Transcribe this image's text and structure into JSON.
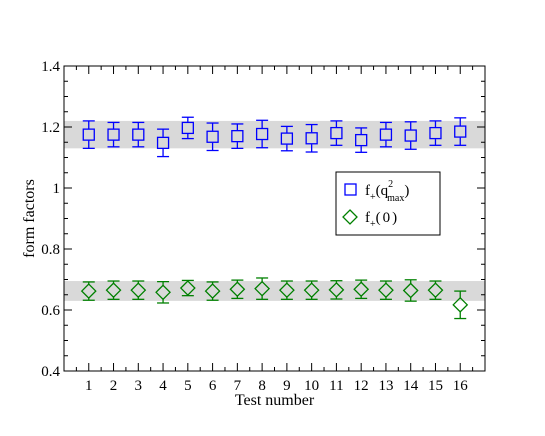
{
  "chart_data": {
    "type": "scatter",
    "xlabel": "Test number",
    "ylabel": "form factors",
    "xlim": [
      0,
      17
    ],
    "ylim": [
      0.4,
      1.4
    ],
    "x_ticks": [
      "1",
      "2",
      "3",
      "4",
      "5",
      "6",
      "7",
      "8",
      "9",
      "10",
      "11",
      "12",
      "13",
      "14",
      "15",
      "16"
    ],
    "y_ticks": [
      "0.4",
      "0.6",
      "0.8",
      "1",
      "1.2",
      "1.4"
    ],
    "grid": false,
    "legend_position": "right",
    "bands": [
      {
        "ymin": 1.13,
        "ymax": 1.22,
        "color": "#d9d9d9"
      },
      {
        "ymin": 0.63,
        "ymax": 0.695,
        "color": "#d9d9d9"
      }
    ],
    "series": [
      {
        "name": "f+(q2max)",
        "legend_parts": {
          "f": "f",
          "sub": "+",
          "q": "q",
          "sup": "2",
          "sub2": "max"
        },
        "marker": "square",
        "color": "#0000ff",
        "x": [
          1,
          2,
          3,
          4,
          5,
          6,
          7,
          8,
          9,
          10,
          11,
          12,
          13,
          14,
          15,
          16
        ],
        "y": [
          1.175,
          1.175,
          1.175,
          1.148,
          1.197,
          1.168,
          1.17,
          1.177,
          1.162,
          1.163,
          1.18,
          1.157,
          1.175,
          1.172,
          1.18,
          1.185
        ],
        "err": [
          0.045,
          0.04,
          0.04,
          0.045,
          0.035,
          0.045,
          0.04,
          0.045,
          0.04,
          0.045,
          0.04,
          0.04,
          0.04,
          0.045,
          0.04,
          0.045
        ]
      },
      {
        "name": "f+(0)",
        "legend_parts": {
          "f": "f",
          "sub": "+",
          "q": "0"
        },
        "marker": "diamond",
        "color": "#008000",
        "x": [
          1,
          2,
          3,
          4,
          5,
          6,
          7,
          8,
          9,
          10,
          11,
          12,
          13,
          14,
          15,
          16
        ],
        "y": [
          0.662,
          0.665,
          0.665,
          0.658,
          0.672,
          0.662,
          0.668,
          0.67,
          0.665,
          0.665,
          0.666,
          0.668,
          0.665,
          0.664,
          0.665,
          0.617
        ],
        "err": [
          0.03,
          0.03,
          0.03,
          0.035,
          0.025,
          0.03,
          0.03,
          0.035,
          0.03,
          0.03,
          0.03,
          0.03,
          0.03,
          0.035,
          0.03,
          0.045
        ]
      }
    ]
  }
}
